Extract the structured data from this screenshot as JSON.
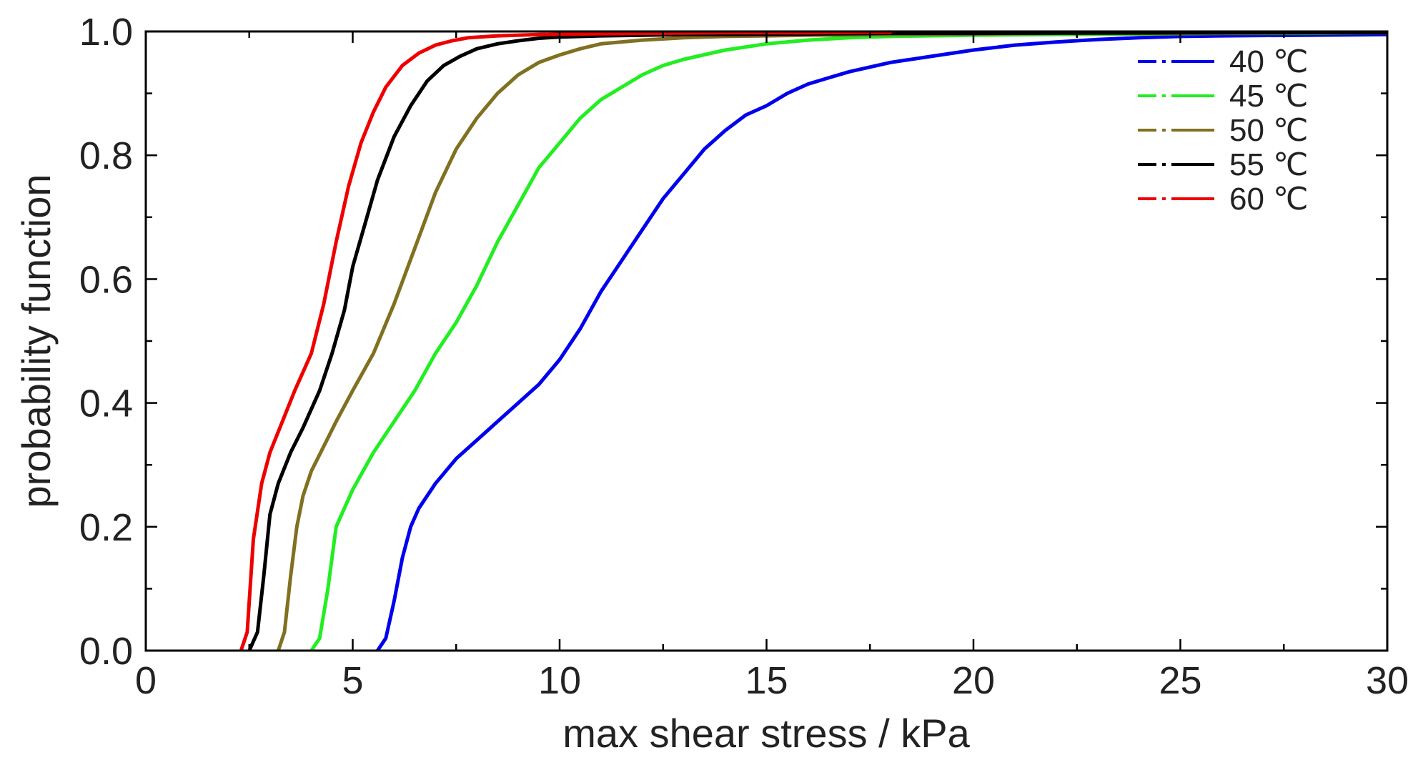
{
  "chart_data": {
    "type": "line",
    "xlabel": "max shear stress / kPa",
    "ylabel": "probability function",
    "xlim": [
      0,
      30
    ],
    "ylim": [
      0,
      1.0
    ],
    "x_ticks": [
      0,
      5,
      10,
      15,
      20,
      25,
      30
    ],
    "x_tick_labels": [
      "0",
      "5",
      "10",
      "15",
      "20",
      "25",
      "30"
    ],
    "y_ticks": [
      0.0,
      0.2,
      0.4,
      0.6,
      0.8,
      1.0
    ],
    "y_tick_labels": [
      "0.0",
      "0.2",
      "0.4",
      "0.6",
      "0.8",
      "1.0"
    ],
    "grid": false,
    "legend_position": "top-right",
    "series": [
      {
        "name": "40 ℃",
        "color": "#0000ee",
        "x": [
          5.6,
          5.8,
          6.0,
          6.2,
          6.4,
          6.6,
          7.0,
          7.5,
          8.0,
          8.5,
          9.0,
          9.5,
          10.0,
          10.5,
          11.0,
          11.5,
          12.0,
          12.5,
          13.0,
          13.5,
          14.0,
          14.5,
          15.0,
          15.5,
          16.0,
          16.5,
          17.0,
          18.0,
          19.0,
          20.0,
          21.0,
          22.0,
          23.0,
          24.0,
          25.0,
          26.0,
          28.0,
          30.0
        ],
        "y": [
          0.0,
          0.02,
          0.08,
          0.15,
          0.2,
          0.23,
          0.27,
          0.31,
          0.34,
          0.37,
          0.4,
          0.43,
          0.47,
          0.52,
          0.58,
          0.63,
          0.68,
          0.73,
          0.77,
          0.81,
          0.84,
          0.865,
          0.88,
          0.9,
          0.915,
          0.925,
          0.935,
          0.95,
          0.96,
          0.97,
          0.978,
          0.983,
          0.987,
          0.99,
          0.992,
          0.993,
          0.994,
          0.995
        ]
      },
      {
        "name": "45 ℃",
        "color": "#22ee22",
        "x": [
          4.0,
          4.2,
          4.4,
          4.6,
          4.8,
          5.0,
          5.5,
          6.0,
          6.5,
          7.0,
          7.5,
          8.0,
          8.5,
          9.0,
          9.5,
          10.0,
          10.5,
          11.0,
          11.5,
          12.0,
          12.5,
          13.0,
          14.0,
          15.0,
          16.0,
          17.0,
          18.0,
          20.0,
          22.0,
          24.0,
          26.0,
          28.0,
          30.0
        ],
        "y": [
          0.0,
          0.02,
          0.1,
          0.2,
          0.23,
          0.26,
          0.32,
          0.37,
          0.42,
          0.48,
          0.53,
          0.59,
          0.66,
          0.72,
          0.78,
          0.82,
          0.86,
          0.89,
          0.91,
          0.93,
          0.945,
          0.955,
          0.97,
          0.98,
          0.986,
          0.99,
          0.992,
          0.994,
          0.995,
          0.996,
          0.997,
          0.997,
          0.998
        ]
      },
      {
        "name": "50 ℃",
        "color": "#807020",
        "x": [
          3.2,
          3.35,
          3.5,
          3.65,
          3.8,
          4.0,
          4.3,
          4.6,
          5.0,
          5.5,
          6.0,
          6.5,
          7.0,
          7.5,
          8.0,
          8.5,
          9.0,
          9.5,
          10.0,
          10.5,
          11.0,
          12.0,
          13.0,
          14.0,
          15.0,
          16.0,
          18.0,
          20.0,
          22.0,
          25.0,
          30.0
        ],
        "y": [
          0.0,
          0.03,
          0.12,
          0.2,
          0.25,
          0.29,
          0.33,
          0.37,
          0.42,
          0.48,
          0.56,
          0.65,
          0.74,
          0.81,
          0.86,
          0.9,
          0.93,
          0.95,
          0.962,
          0.972,
          0.98,
          0.986,
          0.99,
          0.992,
          0.993,
          0.994,
          0.995,
          0.996,
          0.997,
          0.997,
          0.998
        ]
      },
      {
        "name": "55 ℃",
        "color": "#000000",
        "x": [
          2.5,
          2.7,
          2.85,
          3.0,
          3.2,
          3.5,
          3.8,
          4.2,
          4.5,
          4.8,
          5.0,
          5.3,
          5.6,
          6.0,
          6.4,
          6.8,
          7.2,
          7.6,
          8.0,
          8.5,
          9.0,
          9.5,
          10.0,
          11.0,
          12.0,
          13.0,
          14.0,
          16.0,
          18.0,
          20.0,
          25.0,
          30.0
        ],
        "y": [
          0.0,
          0.03,
          0.12,
          0.22,
          0.27,
          0.32,
          0.36,
          0.42,
          0.48,
          0.55,
          0.62,
          0.69,
          0.76,
          0.83,
          0.88,
          0.92,
          0.945,
          0.96,
          0.972,
          0.98,
          0.985,
          0.989,
          0.991,
          0.993,
          0.994,
          0.995,
          0.995,
          0.996,
          0.997,
          0.997,
          0.998,
          0.998
        ]
      },
      {
        "name": "60 ℃",
        "color": "#ee0000",
        "x": [
          2.3,
          2.45,
          2.6,
          2.8,
          3.0,
          3.3,
          3.6,
          4.0,
          4.3,
          4.6,
          4.9,
          5.2,
          5.5,
          5.8,
          6.2,
          6.6,
          7.0,
          7.4,
          7.8,
          8.5,
          9.5,
          10.5,
          12.0,
          14.0,
          16.0,
          18.0
        ],
        "y": [
          0.0,
          0.03,
          0.18,
          0.27,
          0.32,
          0.37,
          0.42,
          0.48,
          0.56,
          0.66,
          0.75,
          0.82,
          0.87,
          0.91,
          0.945,
          0.965,
          0.978,
          0.985,
          0.99,
          0.993,
          0.995,
          0.996,
          0.997,
          0.998,
          0.998,
          0.999
        ]
      }
    ]
  }
}
